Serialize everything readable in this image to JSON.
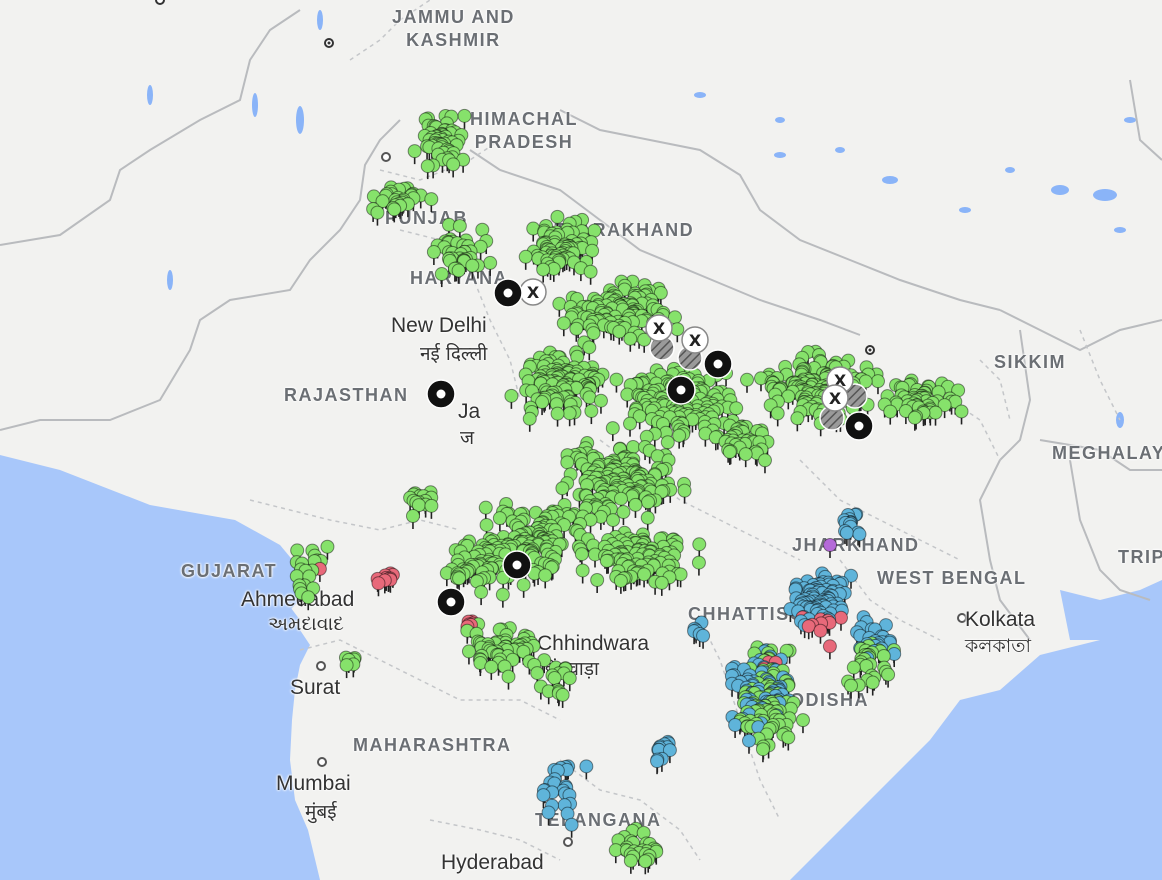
{
  "labels": {
    "states": {
      "jammu_kashmir": "JAMMU AND\nKASHMIR",
      "himachal": "HIMACHAL\nPRADESH",
      "punjab": "PUNJAB",
      "uttarakhand": "UTTARAKHAND",
      "haryana": "HARYANA",
      "rajasthan": "RAJASTHAN",
      "sikkim": "SIKKIM",
      "meghalaya": "MEGHALAYA",
      "tripura": "TRIPU",
      "gujarat": "GUJARAT",
      "jharkhand": "JHARKHAND",
      "west_bengal": "WEST BENGAL",
      "chhattisgarh": "CHHATTISGARH",
      "odisha": "ODISHA",
      "maharashtra": "MAHARASHTRA",
      "telangana": "TELANGANA"
    },
    "cities": {
      "new_delhi": "New Delhi",
      "new_delhi_local": "नई दिल्ली",
      "ahmedabad": "Ahmedabad",
      "ahmedabad_local": "અમદાવાદ",
      "surat": "Surat",
      "mumbai": "Mumbai",
      "mumbai_local": "मुंबई",
      "hyderabad": "Hyderabad",
      "kolkata": "Kolkata",
      "kolkata_local": "কলকাতা",
      "chhindwara": "Chhindwara",
      "chhindwara_local": "छिंदवाड़ा",
      "jaipur_partial": "Ja",
      "jaipur_local_partial": "ज"
    }
  },
  "colors": {
    "land": "#f2f2f0",
    "water": "#a8c7fa",
    "lake": "#8ab4f8",
    "green_marker": "#86e26b",
    "blue_marker": "#5fb4da",
    "red_marker": "#e8697a",
    "purple_marker": "#b46ad8",
    "black_marker": "#111111",
    "border": "#b9bbbe"
  },
  "markers": {
    "types": [
      "green-pin",
      "blue-pin",
      "red-pin",
      "purple-pin",
      "black-target",
      "x-marker",
      "hatched-marker"
    ],
    "special": [
      {
        "type": "black-target",
        "name": "target-marker"
      },
      {
        "type": "x-marker",
        "name": "x-marker",
        "label": "X"
      },
      {
        "type": "hatched-marker",
        "name": "hatched-marker"
      }
    ]
  }
}
